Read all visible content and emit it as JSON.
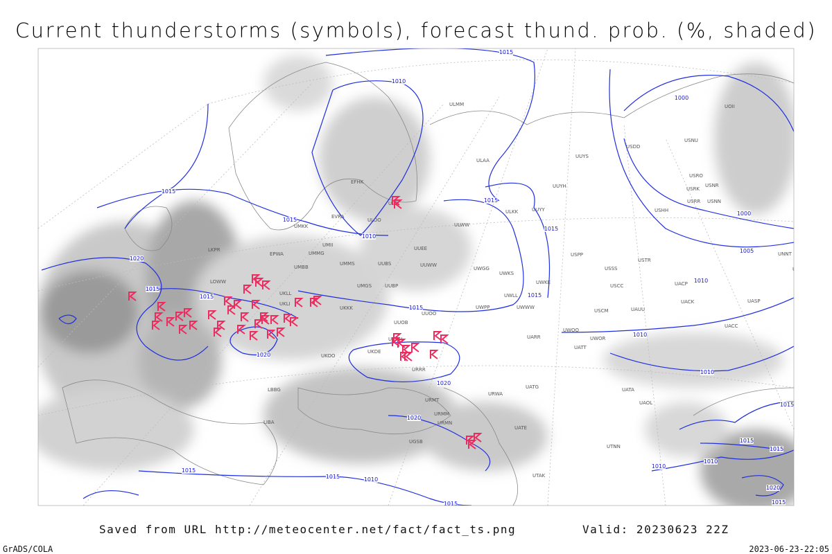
{
  "title": "Current thunderstorms (symbols), forecast thund. prob. (%, shaded)",
  "footer": {
    "source": "Saved from URL http://meteocenter.net/fact/fact_ts.png",
    "valid": "Valid: 20230623 22Z",
    "software": "GrADS/COLA",
    "timestamp": "2023-06-23-22:05"
  },
  "isobar_labels": [
    "1015",
    "1010",
    "1000",
    "1015",
    "1015",
    "1010",
    "1015",
    "1015",
    "1020",
    "1015",
    "1015",
    "1000",
    "1005",
    "1010",
    "1015",
    "1015",
    "1010",
    "1010",
    "1020",
    "1020",
    "1020",
    "1015",
    "1015",
    "1015",
    "1010",
    "1010",
    "1015",
    "1015",
    "1010",
    "1020",
    "1015",
    "1015"
  ],
  "stations": [
    "ULMM",
    "UUYS",
    "ULAA",
    "UUYH",
    "UUYY",
    "ULKK",
    "ULWW",
    "USHH",
    "UUEE",
    "UUWW",
    "UWGG",
    "UWKS",
    "UWKE",
    "UWLL",
    "UWWW",
    "UWPP",
    "USPP",
    "USSS",
    "USCC",
    "USTR",
    "USCM",
    "UAUU",
    "UACK",
    "UASP",
    "UACP",
    "UNNT",
    "UNBB",
    "USRK",
    "USRO",
    "USNR",
    "USRR",
    "USNN",
    "USNU",
    "UOII",
    "USDD",
    "UUOO",
    "UUOB",
    "UKKK",
    "UKLL",
    "UKLI",
    "UMMS",
    "UMMG",
    "EPWA",
    "UMBB",
    "UUBS",
    "UUBP",
    "UMGS",
    "UWOO",
    "UARR",
    "UACC",
    "UATT",
    "UWOR",
    "UATG",
    "UATE",
    "URWA",
    "UATA",
    "UAOL",
    "URRR",
    "UKHH",
    "UKDE",
    "UKOO",
    "URMT",
    "URMM",
    "URMN",
    "UGSB",
    "LBBG",
    "LIBA",
    "LKPR",
    "LOWW",
    "EFHK",
    "EVRA",
    "ULOO",
    "ULLI",
    "UMKK",
    "UMII",
    "UTAK",
    "UTNN"
  ]
}
